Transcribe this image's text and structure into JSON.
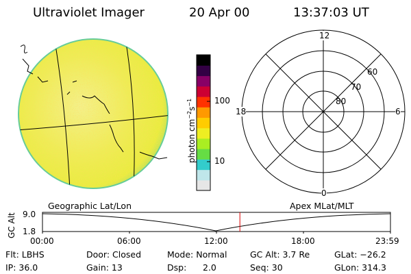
{
  "header": {
    "title": "Ultraviolet Imager",
    "date": "20 Apr 00",
    "time": "13:37:03 UT"
  },
  "colorbar": {
    "unit": "photon cm",
    "unit_exp1": "−2",
    "unit_s": "s",
    "unit_exp2": "−1",
    "tick_100": "100",
    "tick_10": "10",
    "colors": [
      "#e6e6e6",
      "#bfe6ea",
      "#33cccc",
      "#66dd44",
      "#aaee22",
      "#eeee22",
      "#ffcc00",
      "#ff9900",
      "#ff3300",
      "#cc0033",
      "#880066",
      "#330044",
      "#000000"
    ]
  },
  "polar": {
    "label_top": "12",
    "label_left": "18",
    "label_right": "6",
    "label_bottom": "0",
    "ring_60": "60",
    "ring_70": "70",
    "ring_80": "80"
  },
  "strip": {
    "label_left": "Geographic Lat/Lon",
    "label_right": "Apex MLat/MLT",
    "axis_label": "GC Alt",
    "y_top": "9.0",
    "y_bottom": "1.8",
    "x_ticks": [
      "00:00",
      "06:00",
      "12:00",
      "18:00",
      "23:59"
    ],
    "current_time_fraction": 0.5674
  },
  "info": {
    "flt_label": "Flt: LBHS",
    "ip_label": "IP: 36.0",
    "door_label": "Door: Closed",
    "gain_label": "Gain: 13",
    "mode_label": "Mode: Normal",
    "dsp_label": "Dsp:",
    "dsp_value": "2.0",
    "gcalt_label": "GC Alt: 3.7 Re",
    "seq_label": "Seq: 30",
    "glat_label": "GLat: −26.2",
    "glon_label": "GLon: 314.3"
  }
}
